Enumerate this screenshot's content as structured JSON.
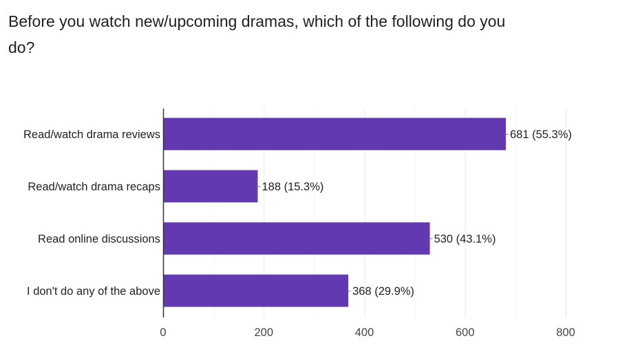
{
  "question": {
    "title": "Before you watch new/upcoming dramas, which of the following do you do?"
  },
  "colors": {
    "bar": "#6239b0",
    "grid": "#e8e8e8",
    "axis": "#333333",
    "leader": "#888888"
  },
  "chart_data": {
    "type": "bar",
    "orientation": "horizontal",
    "title": "",
    "xlabel": "",
    "ylabel": "",
    "categories": [
      "Read/watch drama reviews",
      "Read/watch drama recaps",
      "Read online discussions",
      "I don't do any of the above"
    ],
    "values": [
      681,
      188,
      530,
      368
    ],
    "data_labels": [
      "681 (55.3%)",
      "188 (15.3%)",
      "530 (43.1%)",
      "368 (29.9%)"
    ],
    "xlim": [
      0,
      800
    ],
    "x_ticks": [
      0,
      200,
      400,
      600,
      800
    ],
    "grid": true,
    "legend": "none"
  }
}
